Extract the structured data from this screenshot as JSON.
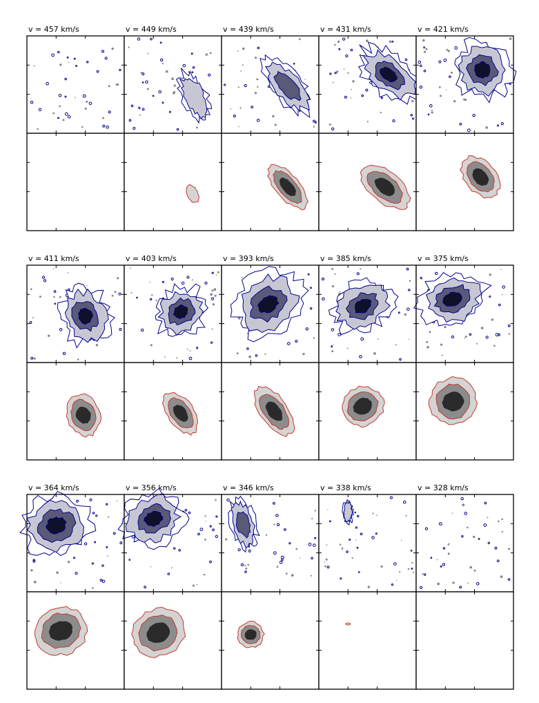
{
  "chart_data": {
    "type": "channel_map",
    "velocity_unit": "km/s",
    "channels": [
      {
        "label": "v = 457 km/s",
        "velocity": 457,
        "data_emission": "none",
        "model_emission": "none"
      },
      {
        "label": "v = 449 km/s",
        "velocity": 449,
        "data_emission": "faint",
        "model_emission": "faint"
      },
      {
        "label": "v = 439 km/s",
        "velocity": 439,
        "data_emission": "moderate",
        "model_emission": "moderate"
      },
      {
        "label": "v = 431 km/s",
        "velocity": 431,
        "data_emission": "strong",
        "model_emission": "strong"
      },
      {
        "label": "v = 421 km/s",
        "velocity": 421,
        "data_emission": "strong",
        "model_emission": "strong"
      },
      {
        "label": "v = 411 km/s",
        "velocity": 411,
        "data_emission": "strong",
        "model_emission": "strong"
      },
      {
        "label": "v = 403 km/s",
        "velocity": 403,
        "data_emission": "strong",
        "model_emission": "strong"
      },
      {
        "label": "v = 393 km/s",
        "velocity": 393,
        "data_emission": "strong",
        "model_emission": "strong"
      },
      {
        "label": "v = 385 km/s",
        "velocity": 385,
        "data_emission": "strong",
        "model_emission": "strong"
      },
      {
        "label": "v = 375 km/s",
        "velocity": 375,
        "data_emission": "strong",
        "model_emission": "strong"
      },
      {
        "label": "v = 364 km/s",
        "velocity": 364,
        "data_emission": "strong",
        "model_emission": "strong"
      },
      {
        "label": "v = 356 km/s",
        "velocity": 356,
        "data_emission": "strong",
        "model_emission": "strong"
      },
      {
        "label": "v = 346 km/s",
        "velocity": 346,
        "data_emission": "moderate",
        "model_emission": "moderate"
      },
      {
        "label": "v = 338 km/s",
        "velocity": 338,
        "data_emission": "faint",
        "model_emission": "faint"
      },
      {
        "label": "v = 328 km/s",
        "velocity": 328,
        "data_emission": "none",
        "model_emission": "none"
      }
    ],
    "colors": {
      "data_contour": "#00008b",
      "model_contour": "#c0392b",
      "negative_noise": "#888888",
      "axes": "#000000"
    }
  }
}
